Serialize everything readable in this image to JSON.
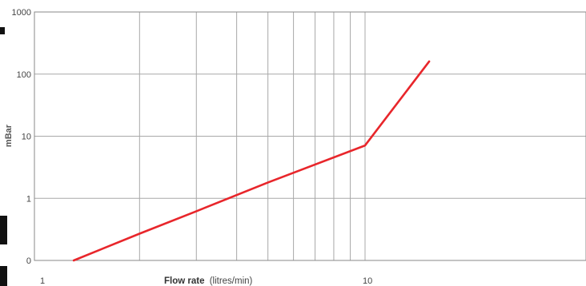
{
  "chart_data": {
    "type": "line",
    "title": "",
    "xlabel": "Flow rate",
    "xlabel_unit": "(litres/min)",
    "ylabel": "mBar",
    "xscale": "log",
    "yscale": "log",
    "xlim": [
      1,
      16
    ],
    "ylim": [
      0.1,
      1000
    ],
    "x_tick_labels": [
      "1",
      "10"
    ],
    "x_tick_values": [
      1,
      10
    ],
    "x_minor_gridlines": [
      2,
      3,
      4,
      5,
      6,
      7,
      8,
      9,
      10
    ],
    "y_tick_labels": [
      "0",
      "1",
      "10",
      "100",
      "1000"
    ],
    "y_tick_values": [
      0.1,
      1,
      10,
      100,
      1000
    ],
    "grid": true,
    "legend": "none",
    "series": [
      {
        "x": [
          1.25,
          2,
          3,
          5,
          10,
          15.8
        ],
        "values": [
          0.1,
          0.27,
          0.62,
          1.8,
          7.1,
          160
        ],
        "color": "#e8262b"
      }
    ]
  }
}
